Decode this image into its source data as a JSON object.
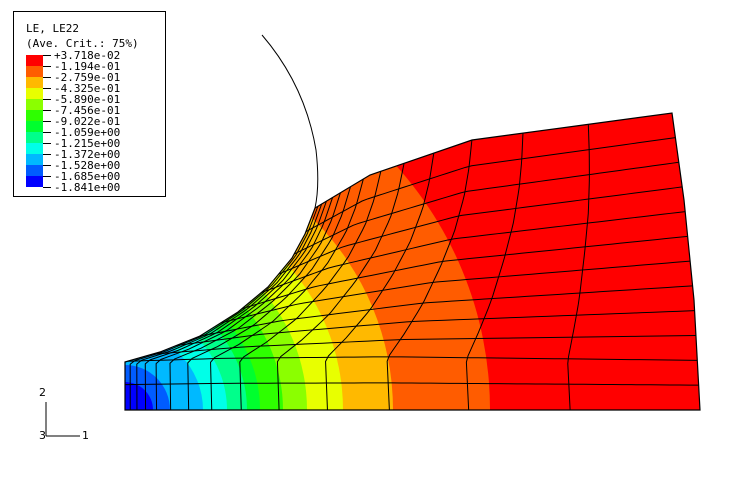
{
  "legend": {
    "title": "LE, LE22",
    "subtitle": "(Ave. Crit.: 75%)",
    "values": [
      "+3.718e-02",
      "-1.194e-01",
      "-2.759e-01",
      "-4.325e-01",
      "-5.890e-01",
      "-7.456e-01",
      "-9.022e-01",
      "-1.059e+00",
      "-1.215e+00",
      "-1.372e+00",
      "-1.528e+00",
      "-1.685e+00",
      "-1.841e+00"
    ],
    "colors": [
      "#ff0000",
      "#ff5c00",
      "#ffb900",
      "#e8ff00",
      "#8bff00",
      "#2eff00",
      "#00ff2e",
      "#00ff8b",
      "#00ffe8",
      "#00b9ff",
      "#005cff",
      "#0000ff"
    ]
  },
  "triad": {
    "axis_1": "1",
    "axis_2": "2",
    "axis_3": "3"
  }
}
